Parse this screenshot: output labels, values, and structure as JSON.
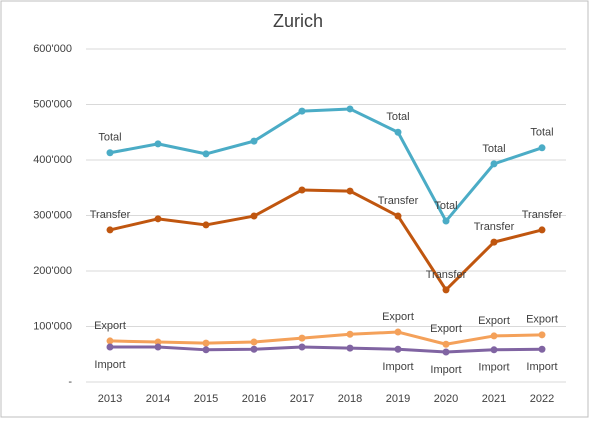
{
  "chart_data": {
    "type": "line",
    "title": "Zurich",
    "categories": [
      "2013",
      "2014",
      "2015",
      "2016",
      "2017",
      "2018",
      "2019",
      "2020",
      "2021",
      "2022"
    ],
    "series": [
      {
        "name": "Total",
        "color": "#4bacc6",
        "values": [
          413000,
          429000,
          411000,
          434000,
          488000,
          492000,
          450000,
          290000,
          393000,
          422000
        ],
        "value_labels": [
          "Total",
          null,
          null,
          null,
          null,
          null,
          "Total",
          "Total",
          "Total",
          "Total"
        ]
      },
      {
        "name": "Transfer",
        "color": "#c0560f",
        "values": [
          274000,
          294000,
          283000,
          299000,
          346000,
          344000,
          299000,
          166000,
          252000,
          274000
        ],
        "value_labels": [
          "Transfer",
          null,
          null,
          null,
          null,
          null,
          "Transfer",
          "Transfer",
          "Transfer",
          "Transfer"
        ]
      },
      {
        "name": "Export",
        "color": "#f4a15a",
        "values": [
          74000,
          72000,
          70000,
          72000,
          79000,
          86000,
          90000,
          68000,
          83000,
          85000
        ],
        "value_labels": [
          "Export",
          null,
          null,
          null,
          null,
          null,
          "Export",
          "Export",
          "Export",
          "Export"
        ]
      },
      {
        "name": "Import",
        "color": "#8064a2",
        "values": [
          63000,
          63000,
          58000,
          59000,
          63000,
          61000,
          59000,
          54000,
          58000,
          59000
        ],
        "value_labels": [
          "Import",
          null,
          null,
          null,
          null,
          null,
          "Import",
          "Import",
          "Import",
          "Import"
        ]
      }
    ],
    "ylim": [
      0,
      600000
    ],
    "yticks": [
      {
        "value": 0,
        "label": "-"
      },
      {
        "value": 100000,
        "label": "100'000"
      },
      {
        "value": 200000,
        "label": "200'000"
      },
      {
        "value": 300000,
        "label": "300'000"
      },
      {
        "value": 400000,
        "label": "400'000"
      },
      {
        "value": 500000,
        "label": "500'000"
      },
      {
        "value": 600000,
        "label": "600'000"
      }
    ],
    "grid": true
  }
}
